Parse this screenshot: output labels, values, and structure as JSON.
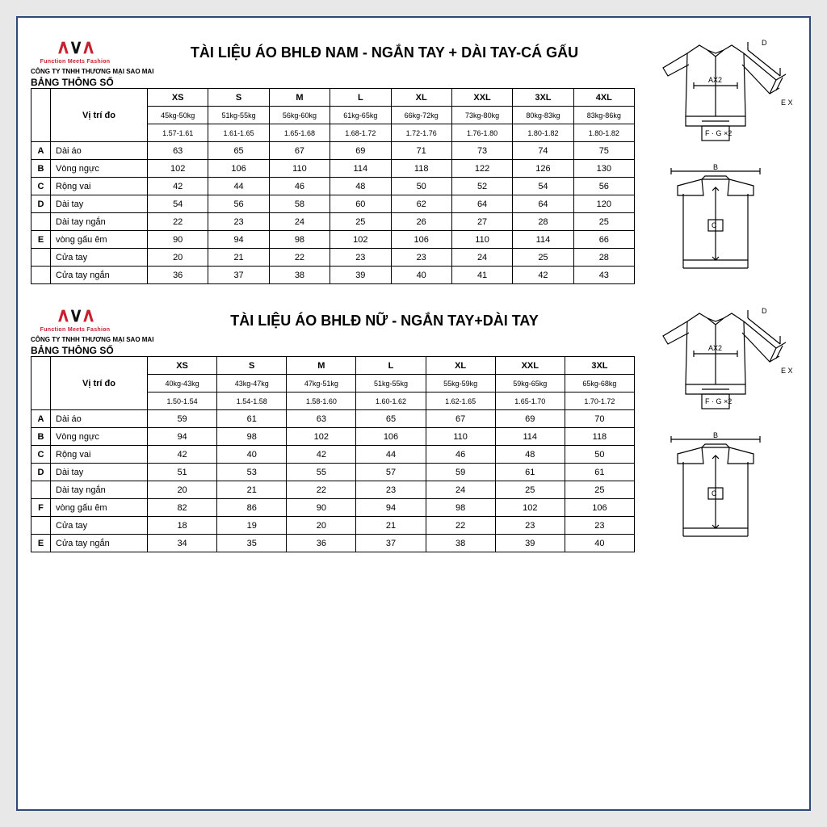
{
  "logo": {
    "text_parts": [
      "∧",
      "∨",
      "∧"
    ],
    "tagline": "Function Meets Fashion",
    "company": "CÔNG TY TNHH THƯƠNG MẠI SAO MAI",
    "colors": {
      "red": "#c8202f",
      "black": "#111"
    }
  },
  "section_title_label": "BẢNG THÔNG SỐ",
  "pos_header": "Vị trí đo",
  "male": {
    "title": "TÀI LIỆU ÁO BHLĐ NAM - NGẮN TAY + DÀI TAY-CÁ GẤU",
    "sizes": [
      "XS",
      "S",
      "M",
      "L",
      "XL",
      "XXL",
      "3XL",
      "4XL"
    ],
    "weight": [
      "45kg-50kg",
      "51kg-55kg",
      "56kg-60kg",
      "61kg-65kg",
      "66kg-72kg",
      "73kg-80kg",
      "80kg-83kg",
      "83kg-86kg"
    ],
    "height": [
      "1.57-1.61",
      "1.61-1.65",
      "1.65-1.68",
      "1.68-1.72",
      "1.72-1.76",
      "1.76-1.80",
      "1.80-1.82",
      "1.80-1.82"
    ],
    "rows": [
      {
        "idx": "A",
        "label": "Dài áo",
        "vals": [
          63,
          65,
          67,
          69,
          71,
          73,
          74,
          75
        ]
      },
      {
        "idx": "B",
        "label": "Vòng ngực",
        "vals": [
          102,
          106,
          110,
          114,
          118,
          122,
          126,
          130
        ]
      },
      {
        "idx": "C",
        "label": "Rộng vai",
        "vals": [
          42,
          44,
          46,
          48,
          50,
          52,
          54,
          56
        ]
      },
      {
        "idx": "D",
        "label": "Dài tay",
        "vals": [
          54,
          56,
          58,
          60,
          62,
          64,
          64,
          120
        ]
      },
      {
        "idx": "",
        "label": "Dài tay ngắn",
        "vals": [
          22,
          23,
          24,
          25,
          26,
          27,
          28,
          25
        ]
      },
      {
        "idx": "E",
        "label": "vòng gấu êm",
        "vals": [
          90,
          94,
          98,
          102,
          106,
          110,
          114,
          66
        ]
      },
      {
        "idx": "",
        "label": "Cửa tay",
        "vals": [
          20,
          21,
          22,
          23,
          23,
          24,
          25,
          28
        ]
      },
      {
        "idx": "",
        "label": "Cửa tay ngắn",
        "vals": [
          36,
          37,
          38,
          39,
          40,
          41,
          42,
          43
        ]
      }
    ]
  },
  "female": {
    "title": "TÀI LIỆU ÁO BHLĐ NỮ - NGẮN TAY+DÀI TAY",
    "sizes": [
      "XS",
      "S",
      "M",
      "L",
      "XL",
      "XXL",
      "3XL"
    ],
    "weight": [
      "40kg-43kg",
      "43kg-47kg",
      "47kg-51kg",
      "51kg-55kg",
      "55kg-59kg",
      "59kg-65kg",
      "65kg-68kg"
    ],
    "height": [
      "1.50-1.54",
      "1.54-1.58",
      "1.58-1.60",
      "1.60-1.62",
      "1.62-1.65",
      "1.65-1.70",
      "1.70-1.72"
    ],
    "rows": [
      {
        "idx": "A",
        "label": "Dài áo",
        "vals": [
          59,
          61,
          63,
          65,
          67,
          69,
          70
        ]
      },
      {
        "idx": "B",
        "label": "Vòng ngực",
        "vals": [
          94,
          98,
          102,
          106,
          110,
          114,
          118
        ]
      },
      {
        "idx": "C",
        "label": "Rộng vai",
        "vals": [
          42,
          40,
          42,
          44,
          46,
          48,
          50
        ]
      },
      {
        "idx": "D",
        "label": "Dài tay",
        "vals": [
          51,
          53,
          55,
          57,
          59,
          61,
          61
        ]
      },
      {
        "idx": "",
        "label": "Dài tay ngắn",
        "vals": [
          20,
          21,
          22,
          23,
          24,
          25,
          25
        ]
      },
      {
        "idx": "F",
        "label": "vòng gấu êm",
        "vals": [
          82,
          86,
          90,
          94,
          98,
          102,
          106
        ]
      },
      {
        "idx": "",
        "label": "Cửa tay",
        "vals": [
          18,
          19,
          20,
          21,
          22,
          23,
          23
        ]
      },
      {
        "idx": "E",
        "label": "Cửa tay ngắn",
        "vals": [
          34,
          35,
          36,
          37,
          38,
          39,
          40
        ]
      }
    ]
  },
  "diagram_labels": {
    "top_sleeve": "D",
    "top_body": "AX2",
    "top_cuff": "E X 2",
    "top_hem": "F · G ×2",
    "bottom_width": "B",
    "bottom_center": "C"
  },
  "colors": {
    "border": "#2a4a7a",
    "table_border": "#000000",
    "bg": "#ffffff",
    "page_bg": "#e8e8e8"
  }
}
